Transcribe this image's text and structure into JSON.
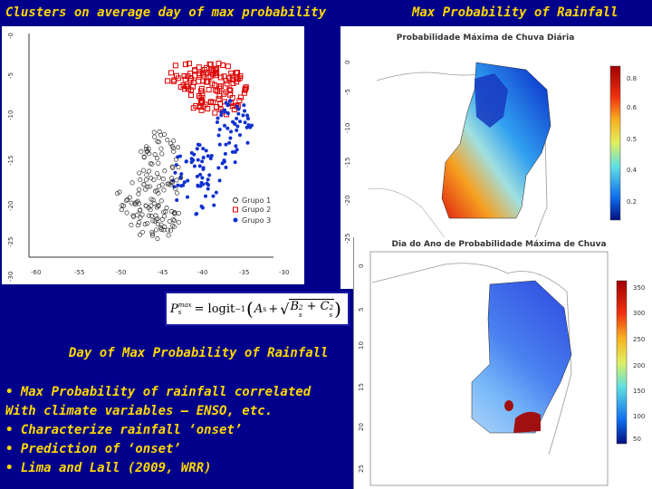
{
  "titles": {
    "left": "Clusters on average day of max probability",
    "right": "Max Probability of Rainfall"
  },
  "scatter": {
    "legend": [
      "Grupo 1",
      "Grupo 2",
      "Grupo 3"
    ],
    "y_ticks": [
      "-0",
      "-5",
      "-10",
      "-15",
      "-20",
      "-25",
      "-30"
    ],
    "x_ticks": [
      "-60",
      "-55",
      "-50",
      "-45",
      "-40",
      "-35",
      "-30"
    ],
    "colors": {
      "grupo1": "#333333",
      "grupo2": "#dd0000",
      "grupo3": "#1030d0"
    }
  },
  "formula": {
    "lhs": "P",
    "lhs_sup": "max",
    "lhs_sub": "s",
    "rhs": "= logit",
    "exp": "−1",
    "body": "A",
    "body_sub": "s",
    "plus": "+",
    "sqrt_terms": "B",
    "b_sup": "2",
    "b_sub": "s",
    "c_term": "+ C",
    "c_sup": "2",
    "c_sub": "s"
  },
  "map_prob": {
    "title": "Probabilidade Máxima de Chuva Diária",
    "y_ticks": [
      "0",
      "-5",
      "-10",
      "-15",
      "-20",
      "-25"
    ],
    "colorbar_ticks": [
      "0.8",
      "0.6",
      "0.5",
      "0.4",
      "0.2"
    ]
  },
  "map_day": {
    "title": "Dia do Ano de Probabilidade Máxima de Chuva",
    "y_ticks": [
      "0",
      "5",
      "10",
      "15",
      "20",
      "25"
    ],
    "colorbar_ticks": [
      "350",
      "300",
      "250",
      "200",
      "150",
      "100",
      "50"
    ]
  },
  "caption": "Day of Max Probability of Rainfall",
  "bullets": [
    "•  Max Probability of rainfall correlated",
    "With climate variables – ENSO, etc.",
    "•  Characterize rainfall ‘onset’",
    "•  Prediction of ‘onset’",
    "•  Lima and Lall (2009, WRR)"
  ]
}
